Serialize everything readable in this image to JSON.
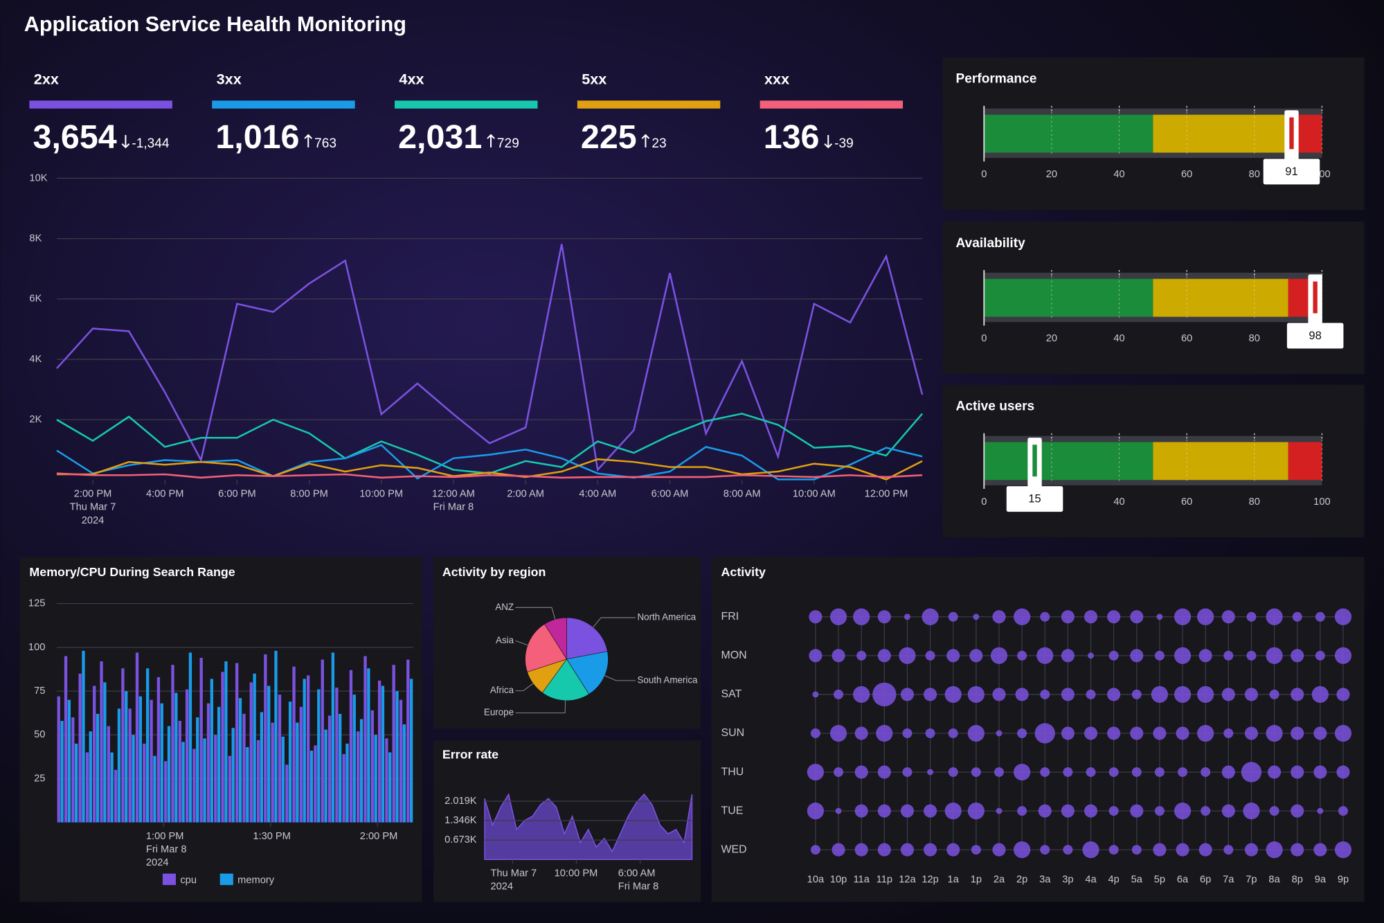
{
  "title": "Application Service Health Monitoring",
  "kpis": [
    {
      "label": "2xx",
      "value": "3,654",
      "delta": "-1,344",
      "trend": "down",
      "color": "#7b52e0"
    },
    {
      "label": "3xx",
      "value": "1,016",
      "delta": "763",
      "trend": "up",
      "color": "#1a9be8"
    },
    {
      "label": "4xx",
      "value": "2,031",
      "delta": "729",
      "trend": "up",
      "color": "#16c9ad"
    },
    {
      "label": "5xx",
      "value": "225",
      "delta": "23",
      "trend": "up",
      "color": "#e0a010"
    },
    {
      "label": "xxx",
      "value": "136",
      "delta": "-39",
      "trend": "down",
      "color": "#f4607a"
    }
  ],
  "chart_data": [
    {
      "type": "line",
      "x": [
        "2024-03-07T13:00",
        "2024-03-07T14:00",
        "2024-03-07T15:00",
        "2024-03-07T16:00",
        "2024-03-07T17:00",
        "2024-03-07T18:00",
        "2024-03-07T19:00",
        "2024-03-07T20:00",
        "2024-03-07T21:00",
        "2024-03-07T22:00",
        "2024-03-07T23:00",
        "2024-03-08T00:00",
        "2024-03-08T01:00",
        "2024-03-08T02:00",
        "2024-03-08T03:00",
        "2024-03-08T04:00",
        "2024-03-08T05:00",
        "2024-03-08T06:00",
        "2024-03-08T07:00",
        "2024-03-08T08:00",
        "2024-03-08T09:00",
        "2024-03-08T10:00",
        "2024-03-08T11:00",
        "2024-03-08T12:00",
        "2024-03-08T13:00"
      ],
      "xlim": [
        "2024-03-07T13:00",
        "2024-03-08T13:00"
      ],
      "xticks": [
        {
          "value": "2024-03-07T14:00",
          "label": [
            "2:00 PM",
            "Thu Mar 7",
            "2024"
          ]
        },
        {
          "value": "2024-03-07T16:00",
          "label": [
            "4:00 PM"
          ]
        },
        {
          "value": "2024-03-07T18:00",
          "label": [
            "6:00 PM"
          ]
        },
        {
          "value": "2024-03-07T20:00",
          "label": [
            "8:00 PM"
          ]
        },
        {
          "value": "2024-03-07T22:00",
          "label": [
            "10:00 PM"
          ]
        },
        {
          "value": "2024-03-08T00:00",
          "label": [
            "12:00 AM",
            "Fri Mar 8"
          ]
        },
        {
          "value": "2024-03-08T02:00",
          "label": [
            "2:00 AM"
          ]
        },
        {
          "value": "2024-03-08T04:00",
          "label": [
            "4:00 AM"
          ]
        },
        {
          "value": "2024-03-08T06:00",
          "label": [
            "6:00 AM"
          ]
        },
        {
          "value": "2024-03-08T08:00",
          "label": [
            "8:00 AM"
          ]
        },
        {
          "value": "2024-03-08T10:00",
          "label": [
            "10:00 AM"
          ]
        },
        {
          "value": "2024-03-08T12:00",
          "label": [
            "12:00 PM"
          ]
        }
      ],
      "ylim": [
        0,
        10000
      ],
      "yticks": [
        {
          "value": 2000,
          "label": "2K"
        },
        {
          "value": 4000,
          "label": "4K"
        },
        {
          "value": 6000,
          "label": "6K"
        },
        {
          "value": 8000,
          "label": "8K"
        },
        {
          "value": 10000,
          "label": "10K"
        }
      ],
      "grid": true,
      "series": [
        {
          "color": "#7b52e0",
          "values": [
            3700,
            5020,
            4930,
            2910,
            660,
            5840,
            5570,
            6510,
            7270,
            2180,
            3200,
            2180,
            1220,
            1740,
            7820,
            340,
            1650,
            6860,
            1540,
            3940,
            780,
            5840,
            5220,
            7410,
            2830
          ]
        },
        {
          "color": "#16c9ad",
          "values": [
            2000,
            1300,
            2100,
            1100,
            1400,
            1400,
            2000,
            1550,
            720,
            1280,
            840,
            340,
            220,
            630,
            430,
            1280,
            900,
            1480,
            1950,
            2200,
            1830,
            1070,
            1130,
            810,
            2200
          ]
        },
        {
          "color": "#1a9be8",
          "values": [
            980,
            220,
            490,
            660,
            600,
            660,
            130,
            600,
            720,
            1160,
            50,
            720,
            840,
            1010,
            720,
            220,
            80,
            280,
            1100,
            810,
            20,
            20,
            510,
            1070,
            780
          ]
        },
        {
          "color": "#e0a010",
          "values": [
            190,
            190,
            600,
            510,
            600,
            510,
            130,
            540,
            280,
            490,
            400,
            130,
            250,
            100,
            280,
            690,
            600,
            430,
            430,
            190,
            280,
            540,
            430,
            20,
            630
          ]
        },
        {
          "color": "#f4607a",
          "values": [
            220,
            160,
            160,
            190,
            80,
            160,
            130,
            160,
            190,
            80,
            130,
            100,
            160,
            130,
            80,
            100,
            100,
            100,
            100,
            160,
            130,
            100,
            160,
            100,
            160
          ]
        }
      ]
    },
    {
      "type": "bullet",
      "title": "Performance",
      "value": 91,
      "xlim": [
        0,
        100
      ],
      "xticks": [
        0,
        20,
        40,
        60,
        80,
        100
      ],
      "bands": [
        {
          "to": 50,
          "color": "#1a8c3a"
        },
        {
          "to": 90,
          "color": "#ccaa00"
        },
        {
          "to": 100,
          "color": "#d42020"
        }
      ]
    },
    {
      "type": "bullet",
      "title": "Availability",
      "value": 98,
      "xlim": [
        0,
        100
      ],
      "xticks": [
        0,
        20,
        40,
        60,
        80,
        100
      ],
      "bands": [
        {
          "to": 50,
          "color": "#1a8c3a"
        },
        {
          "to": 90,
          "color": "#ccaa00"
        },
        {
          "to": 100,
          "color": "#d42020"
        }
      ]
    },
    {
      "type": "bullet",
      "title": "Active users",
      "value": 15,
      "xlim": [
        0,
        100
      ],
      "xticks": [
        0,
        20,
        40,
        60,
        80,
        100
      ],
      "bands": [
        {
          "to": 50,
          "color": "#1a8c3a"
        },
        {
          "to": 90,
          "color": "#ccaa00"
        },
        {
          "to": 100,
          "color": "#d42020"
        }
      ]
    },
    {
      "type": "bar",
      "title": "Memory/CPU During Search Range",
      "x": [
        "2024-03-08T12:30",
        "2024-03-08T12:32",
        "2024-03-08T12:34",
        "2024-03-08T12:36",
        "2024-03-08T12:38",
        "2024-03-08T12:40",
        "2024-03-08T12:42",
        "2024-03-08T12:44",
        "2024-03-08T12:46",
        "2024-03-08T12:48",
        "2024-03-08T12:50",
        "2024-03-08T12:52",
        "2024-03-08T12:54",
        "2024-03-08T12:56",
        "2024-03-08T12:58",
        "2024-03-08T13:00",
        "2024-03-08T13:02",
        "2024-03-08T13:04",
        "2024-03-08T13:06",
        "2024-03-08T13:08",
        "2024-03-08T13:10",
        "2024-03-08T13:12",
        "2024-03-08T13:14",
        "2024-03-08T13:16",
        "2024-03-08T13:18",
        "2024-03-08T13:20",
        "2024-03-08T13:22",
        "2024-03-08T13:24",
        "2024-03-08T13:26",
        "2024-03-08T13:28",
        "2024-03-08T13:30",
        "2024-03-08T13:32",
        "2024-03-08T13:34",
        "2024-03-08T13:36",
        "2024-03-08T13:38",
        "2024-03-08T13:40",
        "2024-03-08T13:42",
        "2024-03-08T13:44",
        "2024-03-08T13:46",
        "2024-03-08T13:48",
        "2024-03-08T13:50",
        "2024-03-08T13:52",
        "2024-03-08T13:54",
        "2024-03-08T13:56",
        "2024-03-08T13:58",
        "2024-03-08T14:00",
        "2024-03-08T14:02",
        "2024-03-08T14:04",
        "2024-03-08T14:06",
        "2024-03-08T14:08"
      ],
      "xlim": [
        "2024-03-08T12:30",
        "2024-03-08T14:10"
      ],
      "xticks": [
        {
          "value": "2024-03-08T13:00",
          "label": [
            "1:00 PM",
            "Fri Mar 8",
            "2024"
          ]
        },
        {
          "value": "2024-03-08T13:30",
          "label": [
            "1:30 PM"
          ]
        },
        {
          "value": "2024-03-08T14:00",
          "label": [
            "2:00 PM"
          ]
        }
      ],
      "ylim": [
        0,
        125
      ],
      "yticks": [
        25,
        50,
        75,
        100,
        125
      ],
      "grid": true,
      "series": [
        {
          "name": "cpu",
          "color": "#7b52e0",
          "values": [
            72,
            95,
            60,
            85,
            40,
            78,
            92,
            55,
            30,
            88,
            65,
            97,
            45,
            70,
            83,
            35,
            90,
            58,
            76,
            42,
            94,
            68,
            50,
            86,
            38,
            91,
            62,
            80,
            47,
            96,
            57,
            73,
            33,
            89,
            66,
            84,
            44,
            93,
            61,
            77,
            39,
            87,
            52,
            95,
            64,
            81,
            48,
            90,
            70,
            93
          ]
        },
        {
          "name": "memory",
          "color": "#1a9be8",
          "values": [
            58,
            70,
            45,
            98,
            52,
            62,
            80,
            40,
            65,
            75,
            50,
            72,
            88,
            38,
            68,
            55,
            74,
            46,
            97,
            60,
            48,
            82,
            66,
            92,
            54,
            71,
            43,
            85,
            63,
            78,
            98,
            49,
            69,
            57,
            82,
            41,
            76,
            53,
            97,
            62,
            45,
            73,
            59,
            88,
            50,
            78,
            40,
            75,
            56,
            82
          ]
        }
      ]
    },
    {
      "type": "pie",
      "title": "Activity by region",
      "categories": [
        "North America",
        "South America",
        "Europe",
        "Africa",
        "Asia",
        "ANZ"
      ],
      "values": [
        22,
        19,
        19,
        10,
        21,
        9
      ],
      "colors": [
        "#7b52e0",
        "#1a9be8",
        "#16c9ad",
        "#e0a010",
        "#f4607a",
        "#c0279a"
      ]
    },
    {
      "type": "area",
      "title": "Error rate",
      "color": "#7b52e0",
      "x": [
        "2024-03-07T10:30",
        "2024-03-07T11:30",
        "2024-03-07T12:30",
        "2024-03-07T13:30",
        "2024-03-07T14:30",
        "2024-03-07T15:30",
        "2024-03-07T16:30",
        "2024-03-07T17:30",
        "2024-03-07T18:30",
        "2024-03-07T19:30",
        "2024-03-07T20:30",
        "2024-03-07T21:30",
        "2024-03-07T22:30",
        "2024-03-07T23:30",
        "2024-03-08T00:30",
        "2024-03-08T01:30",
        "2024-03-08T02:30",
        "2024-03-08T03:30",
        "2024-03-08T04:30",
        "2024-03-08T05:30",
        "2024-03-08T06:30",
        "2024-03-08T07:30",
        "2024-03-08T08:30",
        "2024-03-08T09:30",
        "2024-03-08T10:30",
        "2024-03-08T11:30",
        "2024-03-08T12:30"
      ],
      "xlim": [
        "2024-03-07T10:30",
        "2024-03-08T12:30"
      ],
      "xticks": [
        {
          "value": "2024-03-07T14:00",
          "label": [
            "Thu Mar 7",
            "2024"
          ]
        },
        {
          "value": "2024-03-07T22:00",
          "label": [
            "10:00 PM"
          ]
        },
        {
          "value": "2024-03-08T06:00",
          "label": [
            "6:00 AM",
            "Fri Mar 8"
          ]
        }
      ],
      "ylim": [
        0,
        2300
      ],
      "yticks": [
        {
          "value": 673,
          "label": "0.673K"
        },
        {
          "value": 1346,
          "label": "1.346K"
        },
        {
          "value": 2019,
          "label": "2.019K"
        }
      ],
      "grid": true,
      "values": [
        2110,
        1190,
        1810,
        2260,
        1040,
        1350,
        1500,
        1900,
        2110,
        1810,
        890,
        1500,
        580,
        1040,
        430,
        730,
        280,
        890,
        1500,
        1960,
        2260,
        1900,
        1190,
        890,
        1040,
        580,
        2260
      ]
    },
    {
      "type": "bubble",
      "title": "Activity",
      "color": "#7b52e0",
      "categories": [
        "10a",
        "10p",
        "11a",
        "11p",
        "12a",
        "12p",
        "1a",
        "1p",
        "2a",
        "2p",
        "3a",
        "3p",
        "4a",
        "4p",
        "5a",
        "5p",
        "6a",
        "6p",
        "7a",
        "7p",
        "8a",
        "8p",
        "9a",
        "9p"
      ],
      "rows": [
        {
          "label": "FRI",
          "values": [
            3,
            4,
            4,
            3,
            1,
            4,
            2,
            1,
            3,
            4,
            2,
            3,
            3,
            3,
            3,
            1,
            4,
            4,
            3,
            2,
            4,
            2,
            2,
            4
          ]
        },
        {
          "label": "MON",
          "values": [
            3,
            3,
            2,
            3,
            4,
            2,
            3,
            3,
            4,
            2,
            4,
            3,
            1,
            2,
            3,
            2,
            4,
            3,
            2,
            2,
            4,
            3,
            2,
            4
          ]
        },
        {
          "label": "SAT",
          "values": [
            1,
            2,
            4,
            6,
            3,
            3,
            4,
            4,
            3,
            3,
            2,
            3,
            2,
            3,
            2,
            4,
            4,
            4,
            3,
            3,
            2,
            3,
            4,
            3
          ]
        },
        {
          "label": "SUN",
          "values": [
            2,
            4,
            3,
            4,
            2,
            2,
            2,
            4,
            1,
            2,
            5,
            3,
            3,
            3,
            3,
            3,
            3,
            4,
            2,
            3,
            4,
            3,
            3,
            4
          ]
        },
        {
          "label": "THU",
          "values": [
            4,
            2,
            3,
            3,
            2,
            1,
            2,
            2,
            2,
            4,
            2,
            2,
            2,
            2,
            2,
            2,
            2,
            2,
            3,
            5,
            3,
            3,
            3,
            3
          ]
        },
        {
          "label": "TUE",
          "values": [
            4,
            1,
            3,
            3,
            3,
            3,
            4,
            4,
            1,
            2,
            3,
            3,
            3,
            2,
            3,
            2,
            4,
            2,
            3,
            4,
            2,
            3,
            1,
            2
          ]
        },
        {
          "label": "WED",
          "values": [
            2,
            3,
            3,
            3,
            3,
            3,
            3,
            2,
            3,
            4,
            2,
            2,
            4,
            2,
            2,
            3,
            3,
            3,
            2,
            3,
            4,
            3,
            3,
            4
          ]
        }
      ]
    }
  ]
}
